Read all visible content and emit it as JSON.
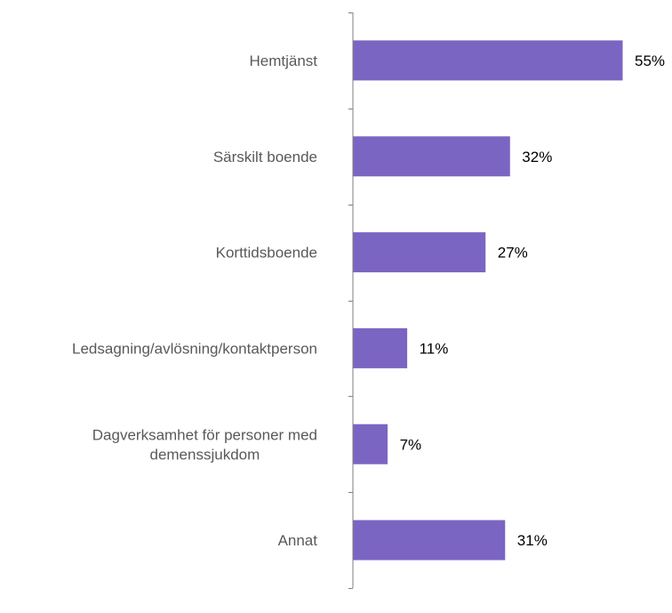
{
  "chart_data": {
    "type": "bar",
    "orientation": "horizontal",
    "categories": [
      "Hemtjänst",
      "Särskilt boende",
      "Korttidsboende",
      "Ledsagning/avlösning/kontaktperson",
      "Dagverksamhet för personer med demenssjukdom",
      "Annat"
    ],
    "category_lines": [
      [
        "Hemtjänst"
      ],
      [
        "Särskilt boende"
      ],
      [
        "Korttidsboende"
      ],
      [
        "Ledsagning/avlösning/kontaktperson"
      ],
      [
        "Dagverksamhet för personer med",
        "demenssjukdom"
      ],
      [
        "Annat"
      ]
    ],
    "values": [
      55,
      32,
      27,
      11,
      7,
      31
    ],
    "value_labels": [
      "55%",
      "32%",
      "27%",
      "11%",
      "7%",
      "31%"
    ],
    "unit": "%",
    "xlim": [
      0,
      55
    ],
    "title": "",
    "xlabel": "",
    "ylabel": "",
    "grid": false,
    "legend": "none",
    "colors": {
      "bar": "#7b65c2",
      "axis": "#7f7f7f",
      "category_text": "#595959",
      "value_text": "#000000"
    }
  }
}
